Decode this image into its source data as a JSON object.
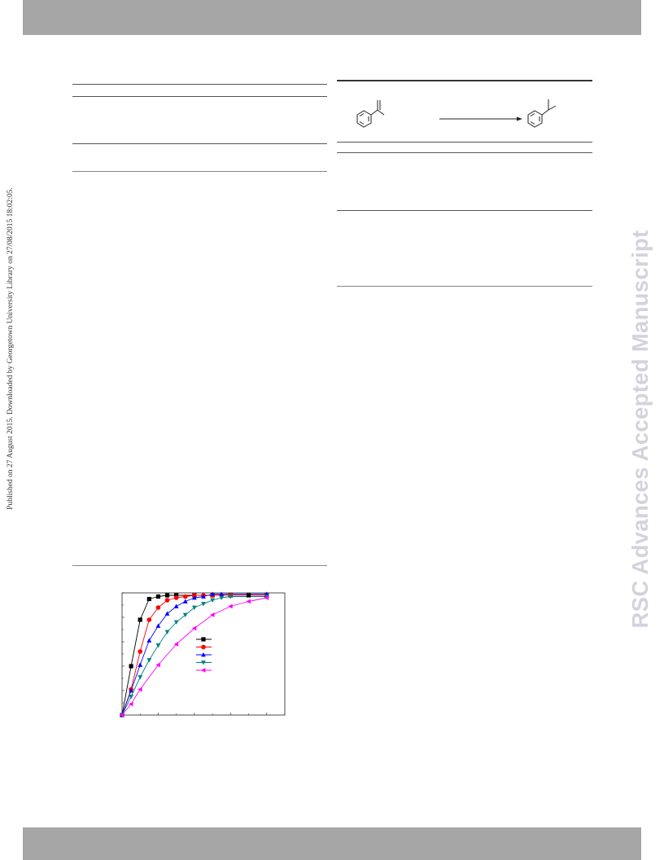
{
  "side_note": "Published on 27 August 2015. Downloaded by Georgetown University Library on 27/08/2015 18:02:05.",
  "watermark": "RSC Advances Accepted Manuscript",
  "colors": {
    "band": "#a6a6a6",
    "watermark": "#d3d3dd",
    "series": [
      "#000000",
      "#ff0000",
      "#0000ff",
      "#008080",
      "#ff00ff"
    ]
  },
  "chart_data": {
    "type": "scatter",
    "series": [
      {
        "marker": "square",
        "color": "#000000",
        "x": [
          0,
          0.5,
          1,
          1.5,
          2,
          2.5,
          3,
          4,
          5,
          6,
          7,
          8
        ],
        "y": [
          0,
          40,
          78,
          95,
          97,
          98,
          98,
          98,
          98,
          98,
          98,
          98
        ]
      },
      {
        "marker": "circle",
        "color": "#ff0000",
        "x": [
          0,
          0.5,
          1,
          1.5,
          2,
          2.5,
          3,
          3.5,
          4,
          4.5,
          5,
          5.5,
          6,
          8
        ],
        "y": [
          0,
          21,
          52,
          78,
          88,
          94,
          96,
          97,
          98,
          98,
          98,
          98,
          98,
          98
        ]
      },
      {
        "marker": "triangle-up",
        "color": "#0000ff",
        "x": [
          0,
          0.5,
          1,
          1.5,
          2,
          2.5,
          3,
          3.5,
          4,
          4.5,
          5,
          5.5,
          8
        ],
        "y": [
          0,
          20,
          41,
          61,
          73,
          83,
          89,
          93,
          96,
          97,
          99,
          99,
          99
        ]
      },
      {
        "marker": "triangle-down",
        "color": "#008080",
        "x": [
          0,
          0.5,
          1,
          1.5,
          2,
          2.5,
          3,
          3.5,
          4,
          4.5,
          5,
          5.5,
          6,
          8
        ],
        "y": [
          0,
          15,
          31,
          45,
          57,
          68,
          76,
          82,
          88,
          91,
          94,
          96,
          97,
          97
        ]
      },
      {
        "marker": "triangle-left",
        "color": "#ff00ff",
        "x": [
          0,
          0.5,
          1,
          2,
          3,
          4,
          5,
          6,
          7,
          8
        ],
        "y": [
          0,
          9,
          21,
          41,
          58,
          71,
          82,
          89,
          93,
          96
        ]
      }
    ],
    "xlim": [
      0,
      9
    ],
    "ylim": [
      0,
      100
    ]
  }
}
